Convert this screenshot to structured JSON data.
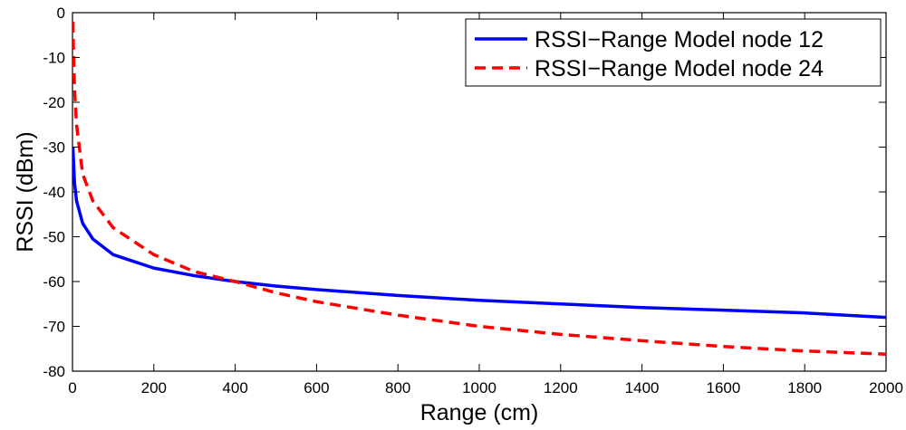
{
  "chart_data": {
    "type": "line",
    "title": "",
    "xlabel": "Range (cm)",
    "ylabel": "RSSI (dBm)",
    "xlim": [
      0,
      2000
    ],
    "ylim": [
      -80,
      0
    ],
    "xticks": [
      0,
      200,
      400,
      600,
      800,
      1000,
      1200,
      1400,
      1600,
      1800,
      2000
    ],
    "yticks": [
      0,
      -10,
      -20,
      -30,
      -40,
      -50,
      -60,
      -70,
      -80
    ],
    "grid": false,
    "legend_position": "top-right",
    "series": [
      {
        "name": "RSSI−Range Model node 12",
        "color": "#0000ff",
        "style": "solid",
        "x": [
          1,
          5,
          10,
          25,
          50,
          100,
          200,
          300,
          400,
          500,
          600,
          800,
          1000,
          1200,
          1400,
          1600,
          1800,
          2000
        ],
        "y": [
          -30,
          -38,
          -42,
          -47,
          -50.5,
          -54,
          -57,
          -58.7,
          -60,
          -61,
          -61.8,
          -63.1,
          -64.2,
          -65,
          -65.8,
          -66.4,
          -67,
          -68
        ]
      },
      {
        "name": "RSSI−Range Model node 24",
        "color": "#ff0000",
        "style": "dashed",
        "x": [
          1,
          2,
          5,
          10,
          25,
          50,
          100,
          200,
          300,
          400,
          500,
          600,
          800,
          1000,
          1200,
          1400,
          1600,
          1800,
          2000
        ],
        "y": [
          -2,
          -7,
          -17,
          -25,
          -36,
          -42,
          -48,
          -54,
          -57.8,
          -60,
          -62.5,
          -64.5,
          -67.5,
          -70,
          -71.8,
          -73.2,
          -74.5,
          -75.5,
          -76.2
        ]
      }
    ]
  }
}
